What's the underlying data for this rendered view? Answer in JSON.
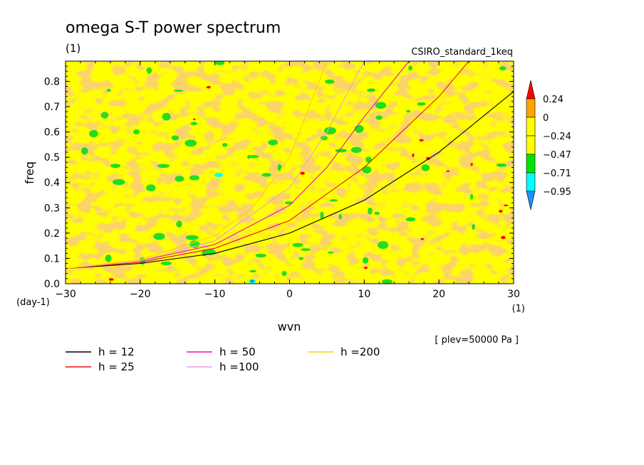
{
  "chart_data": {
    "type": "heatmap",
    "title": "omega S-T power spectrum",
    "subtitle": "(1)",
    "run_label": "CSIRO_standard_1keq",
    "xlabel": "wvn",
    "x_units": "(1)",
    "ylabel": "freq",
    "y_units": "(day-1)",
    "xlim": [
      -30,
      30
    ],
    "ylim": [
      0,
      0.88
    ],
    "x_ticks": [
      -30,
      -20,
      -10,
      0,
      10,
      20,
      30
    ],
    "y_ticks": [
      0.0,
      0.1,
      0.2,
      0.3,
      0.4,
      0.5,
      0.6,
      0.7,
      0.8
    ],
    "x_tick_labels": [
      "−30",
      "−20",
      "−10",
      "0",
      "10",
      "20",
      "30"
    ],
    "y_tick_labels": [
      "0.0",
      "0.1",
      "0.2",
      "0.3",
      "0.4",
      "0.5",
      "0.6",
      "0.7",
      "0.8"
    ],
    "level_note": "[ plev=50000 Pa ]",
    "colorbar": {
      "labels": [
        "0.24",
        "0",
        "−0.24",
        "−0.47",
        "−0.71",
        "−0.95"
      ],
      "colors": [
        "#ff0000",
        "#ffa500",
        "#ffff00",
        "#00e400",
        "#00ffff",
        "#1e90ff"
      ]
    },
    "field_colors": {
      "yellow": "#ffff00",
      "orange": "#f5a623",
      "green": "#22dd22",
      "cyan": "#00ffff",
      "red": "#ff0000",
      "blue": "#1e6fff"
    },
    "dispersion_curves": [
      {
        "name": "h = 12",
        "color": "#000000",
        "h": 12,
        "x": [
          -30,
          -20,
          -10,
          0,
          10,
          20,
          30
        ],
        "y": [
          0.06,
          0.08,
          0.12,
          0.2,
          0.33,
          0.52,
          0.76
        ]
      },
      {
        "name": "h = 25",
        "color": "#ee1111",
        "h": 25,
        "x": [
          -30,
          -20,
          -10,
          0,
          10,
          20,
          24
        ],
        "y": [
          0.06,
          0.085,
          0.14,
          0.25,
          0.46,
          0.74,
          0.88
        ]
      },
      {
        "name": "h = 50",
        "color": "#e010c0",
        "h": 50,
        "x": [
          -30,
          -20,
          -10,
          0,
          5,
          10,
          16
        ],
        "y": [
          0.06,
          0.09,
          0.155,
          0.31,
          0.46,
          0.66,
          0.88
        ]
      },
      {
        "name": "h =100",
        "color": "#e8a0e0",
        "h": 100,
        "x": [
          -30,
          -20,
          -10,
          0,
          5,
          10
        ],
        "y": [
          0.06,
          0.09,
          0.17,
          0.38,
          0.6,
          0.88
        ]
      },
      {
        "name": "h =200",
        "color": "#ffd200",
        "h": 200,
        "x": [
          -30,
          -20,
          -10,
          -5,
          0,
          5
        ],
        "y": [
          0.06,
          0.095,
          0.19,
          0.3,
          0.5,
          0.88
        ]
      }
    ]
  }
}
